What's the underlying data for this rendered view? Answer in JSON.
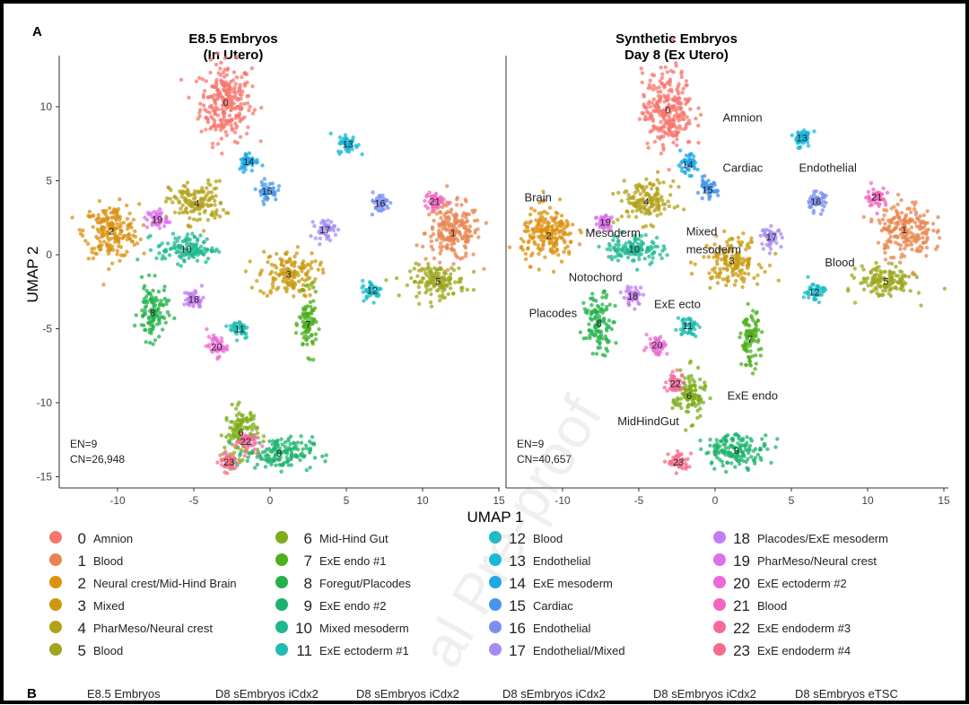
{
  "panel_a_label": "A",
  "panel_b_label": "B",
  "watermark": "al Pre-proof",
  "x_axis_label": "UMAP 1",
  "y_axis_label": "UMAP 2",
  "chart_data": [
    {
      "type": "scatter",
      "title": "E8.5 Embryos",
      "subtitle": "(In Utero)",
      "xlabel": "UMAP 1",
      "ylabel": "UMAP 2",
      "xlim": [
        -14,
        15
      ],
      "ylim": [
        -15.5,
        12.5
      ],
      "xticks": [
        -10,
        -5,
        0,
        5,
        10,
        15
      ],
      "yticks": [
        10,
        5,
        0,
        -5,
        -10,
        -15
      ],
      "annotations": [
        "EN=9",
        "CN=26,948"
      ],
      "region_labels": [],
      "cluster_positions": [
        {
          "c": 0,
          "x": -2.9,
          "y": 10.3
        },
        {
          "c": 1,
          "x": 12.0,
          "y": 1.5
        },
        {
          "c": 2,
          "x": -10.4,
          "y": 1.6
        },
        {
          "c": 3,
          "x": 1.2,
          "y": -1.3
        },
        {
          "c": 4,
          "x": -4.8,
          "y": 3.5
        },
        {
          "c": 5,
          "x": 11.0,
          "y": -1.8
        },
        {
          "c": 6,
          "x": -1.9,
          "y": -12.0
        },
        {
          "c": 7,
          "x": 2.5,
          "y": -4.7
        },
        {
          "c": 8,
          "x": -7.7,
          "y": -3.9
        },
        {
          "c": 9,
          "x": 0.6,
          "y": -13.4
        },
        {
          "c": 10,
          "x": -5.5,
          "y": 0.4
        },
        {
          "c": 11,
          "x": -2.0,
          "y": -5.0
        },
        {
          "c": 12,
          "x": 6.7,
          "y": -2.4
        },
        {
          "c": 13,
          "x": 5.1,
          "y": 7.5
        },
        {
          "c": 14,
          "x": -1.4,
          "y": 6.3
        },
        {
          "c": 15,
          "x": -0.2,
          "y": 4.3
        },
        {
          "c": 16,
          "x": 7.2,
          "y": 3.5
        },
        {
          "c": 17,
          "x": 3.6,
          "y": 1.7
        },
        {
          "c": 18,
          "x": -5.0,
          "y": -3.0
        },
        {
          "c": 19,
          "x": -7.4,
          "y": 2.4
        },
        {
          "c": 20,
          "x": -3.5,
          "y": -6.2
        },
        {
          "c": 21,
          "x": 10.8,
          "y": 3.6
        },
        {
          "c": 22,
          "x": -1.6,
          "y": -12.6
        },
        {
          "c": 23,
          "x": -2.7,
          "y": -14.0
        }
      ]
    },
    {
      "type": "scatter",
      "title": "Synthetic Embryos",
      "subtitle": "Day 8 (Ex Utero)",
      "xlabel": "UMAP 1",
      "ylabel": "UMAP 2",
      "xlim": [
        -14,
        15
      ],
      "ylim": [
        -15.5,
        12.5
      ],
      "xticks": [
        -10,
        -5,
        0,
        5,
        10,
        15
      ],
      "yticks": [],
      "annotations": [
        "EN=9",
        "CN=40,657"
      ],
      "region_labels": [
        {
          "text": "Amnion",
          "x": 0.5,
          "y": 9.0
        },
        {
          "text": "Cardiac",
          "x": 0.5,
          "y": 5.6
        },
        {
          "text": "Endothelial",
          "x": 5.5,
          "y": 5.6
        },
        {
          "text": "Brain",
          "x": -12.5,
          "y": 3.6
        },
        {
          "text": "Mesoderm",
          "x": -8.5,
          "y": 1.2
        },
        {
          "text": "Mixed",
          "x": -1.9,
          "y": 1.3
        },
        {
          "text": "mesoderm",
          "x": -1.9,
          "y": 0.1
        },
        {
          "text": "Blood",
          "x": 7.2,
          "y": -0.8
        },
        {
          "text": "Notochord",
          "x": -9.6,
          "y": -1.8
        },
        {
          "text": "ExE ecto",
          "x": -4.0,
          "y": -3.6
        },
        {
          "text": "Placodes",
          "x": -12.2,
          "y": -4.2
        },
        {
          "text": "ExE endo",
          "x": 0.8,
          "y": -9.8
        },
        {
          "text": "MidHindGut",
          "x": -6.4,
          "y": -11.5
        }
      ],
      "cluster_positions": [
        {
          "c": 0,
          "x": -3.1,
          "y": 9.8
        },
        {
          "c": 1,
          "x": 12.4,
          "y": 1.7
        },
        {
          "c": 2,
          "x": -10.9,
          "y": 1.3
        },
        {
          "c": 3,
          "x": 1.1,
          "y": -0.4
        },
        {
          "c": 4,
          "x": -4.5,
          "y": 3.6
        },
        {
          "c": 5,
          "x": 11.2,
          "y": -1.8
        },
        {
          "c": 6,
          "x": -1.7,
          "y": -9.5
        },
        {
          "c": 7,
          "x": 2.3,
          "y": -5.7
        },
        {
          "c": 8,
          "x": -7.6,
          "y": -4.6
        },
        {
          "c": 9,
          "x": 1.4,
          "y": -13.2
        },
        {
          "c": 10,
          "x": -5.3,
          "y": 0.4
        },
        {
          "c": 11,
          "x": -1.8,
          "y": -4.8
        },
        {
          "c": 12,
          "x": 6.5,
          "y": -2.5
        },
        {
          "c": 13,
          "x": 5.7,
          "y": 7.9
        },
        {
          "c": 14,
          "x": -1.8,
          "y": 6.1
        },
        {
          "c": 15,
          "x": -0.5,
          "y": 4.4
        },
        {
          "c": 16,
          "x": 6.6,
          "y": 3.6
        },
        {
          "c": 17,
          "x": 3.7,
          "y": 1.2
        },
        {
          "c": 18,
          "x": -5.4,
          "y": -2.8
        },
        {
          "c": 19,
          "x": -7.2,
          "y": 2.2
        },
        {
          "c": 20,
          "x": -3.8,
          "y": -6.1
        },
        {
          "c": 21,
          "x": 10.6,
          "y": 3.9
        },
        {
          "c": 22,
          "x": -2.6,
          "y": -8.7
        },
        {
          "c": 23,
          "x": -2.4,
          "y": -14.0
        }
      ]
    }
  ],
  "clusters": [
    {
      "id": "0",
      "name": "Amnion",
      "color": "#F8766D"
    },
    {
      "id": "1",
      "name": "Blood",
      "color": "#E8854F"
    },
    {
      "id": "2",
      "name": "Neural crest/Mid-Hind Brain",
      "color": "#DB9213"
    },
    {
      "id": "3",
      "name": "Mixed",
      "color": "#C99A10"
    },
    {
      "id": "4",
      "name": "PharMeso/Neural crest",
      "color": "#B3A21A"
    },
    {
      "id": "5",
      "name": "Blood",
      "color": "#9CA71E"
    },
    {
      "id": "6",
      "name": "Mid-Hind Gut",
      "color": "#7DAD1B"
    },
    {
      "id": "7",
      "name": "ExE endo #1",
      "color": "#4DAF1D"
    },
    {
      "id": "8",
      "name": "Foregut/Placodes",
      "color": "#23B14B"
    },
    {
      "id": "9",
      "name": "ExE endo #2",
      "color": "#1CB36E"
    },
    {
      "id": "10",
      "name": "Mixed mesoderm",
      "color": "#1DB892"
    },
    {
      "id": "11",
      "name": "ExE ectoderm #1",
      "color": "#1EBCB1"
    },
    {
      "id": "12",
      "name": "Blood",
      "color": "#1BBCC8"
    },
    {
      "id": "13",
      "name": "Endothelial",
      "color": "#15B8D9"
    },
    {
      "id": "14",
      "name": "ExE mesoderm",
      "color": "#1BA8E6"
    },
    {
      "id": "15",
      "name": "Cardiac",
      "color": "#4796EE"
    },
    {
      "id": "16",
      "name": "Endothelial",
      "color": "#7C8FF0"
    },
    {
      "id": "17",
      "name": "Endothelial/Mixed",
      "color": "#A58CF3"
    },
    {
      "id": "18",
      "name": "Placodes/ExE mesoderm",
      "color": "#C27DF3"
    },
    {
      "id": "19",
      "name": "PharMeso/Neural crest",
      "color": "#DE6FEA"
    },
    {
      "id": "20",
      "name": "ExE ectoderm #2",
      "color": "#ED69D6"
    },
    {
      "id": "21",
      "name": "Blood",
      "color": "#F565BD"
    },
    {
      "id": "22",
      "name": "ExE endoderm #3",
      "color": "#F869A2"
    },
    {
      "id": "23",
      "name": "ExE endoderm #4",
      "color": "#F76D88"
    }
  ],
  "panel_b_columns": [
    "E8.5 Embryos",
    "D8 sEmbryos iCdx2",
    "D8 sEmbryos iCdx2",
    "D8 sEmbryos iCdx2",
    "D8 sEmbryos iCdx2",
    "D8 sEmbryos eTSC"
  ]
}
